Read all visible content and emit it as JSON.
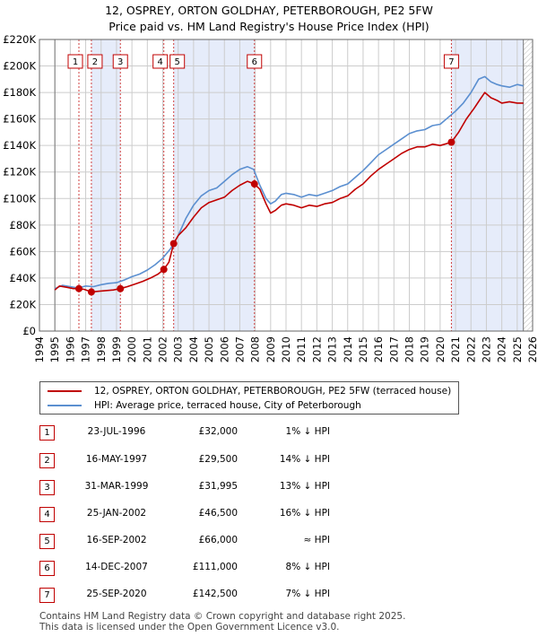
{
  "title_line1": "12, OSPREY, ORTON GOLDHAY, PETERBOROUGH, PE2 5FW",
  "title_line2": "Price paid vs. HM Land Registry's House Price Index (HPI)",
  "legend": {
    "property_label": "12, OSPREY, ORTON GOLDHAY, PETERBOROUGH, PE2 5FW (terraced house)",
    "hpi_label": "HPI: Average price, terraced house, City of Peterborough"
  },
  "colors": {
    "property": "#c00000",
    "hpi": "#5b8fd0",
    "shade": "#e6ecfa",
    "grid": "#cccccc"
  },
  "chart_data": {
    "type": "line",
    "xlim": [
      1994,
      2026
    ],
    "ylim": [
      0,
      220000
    ],
    "y_ticks": [
      0,
      20000,
      40000,
      60000,
      80000,
      100000,
      120000,
      140000,
      160000,
      180000,
      200000,
      220000
    ],
    "y_tick_labels": [
      "£0",
      "£20K",
      "£40K",
      "£60K",
      "£80K",
      "£100K",
      "£120K",
      "£140K",
      "£160K",
      "£180K",
      "£200K",
      "£220K"
    ],
    "x_ticks": [
      1994,
      1995,
      1996,
      1997,
      1998,
      1999,
      2000,
      2001,
      2002,
      2003,
      2004,
      2005,
      2006,
      2007,
      2008,
      2009,
      2010,
      2011,
      2012,
      2013,
      2014,
      2015,
      2016,
      2017,
      2018,
      2019,
      2020,
      2021,
      2022,
      2023,
      2024,
      2025,
      2026
    ],
    "data_start": 1995.0,
    "data_end": 2025.4,
    "series": [
      {
        "name": "HPI: Average price, terraced house, City of Peterborough",
        "x": [
          1995.0,
          1995.5,
          1996.0,
          1996.5,
          1997.0,
          1997.5,
          1998.0,
          1998.5,
          1999.0,
          1999.5,
          2000.0,
          2000.5,
          2001.0,
          2001.5,
          2002.0,
          2002.5,
          2003.0,
          2003.5,
          2004.0,
          2004.5,
          2005.0,
          2005.5,
          2006.0,
          2006.5,
          2007.0,
          2007.5,
          2007.9,
          2008.3,
          2008.7,
          2009.0,
          2009.3,
          2009.7,
          2010.0,
          2010.5,
          2011.0,
          2011.5,
          2012.0,
          2012.5,
          2013.0,
          2013.5,
          2014.0,
          2014.5,
          2015.0,
          2015.5,
          2016.0,
          2016.5,
          2017.0,
          2017.5,
          2018.0,
          2018.5,
          2019.0,
          2019.5,
          2020.0,
          2020.5,
          2021.0,
          2021.5,
          2022.0,
          2022.5,
          2022.9,
          2023.3,
          2023.7,
          2024.0,
          2024.5,
          2025.0,
          2025.4
        ],
        "values": [
          32000,
          34500,
          33500,
          32500,
          34000,
          33500,
          35000,
          36000,
          36500,
          38500,
          41000,
          43000,
          46000,
          50000,
          55000,
          62000,
          72000,
          85000,
          95000,
          102000,
          106000,
          108000,
          113000,
          118000,
          122000,
          124000,
          122000,
          110000,
          100000,
          96000,
          98000,
          103000,
          104000,
          103000,
          101000,
          103000,
          102000,
          104000,
          106000,
          109000,
          111000,
          116000,
          121000,
          127000,
          133000,
          137000,
          141000,
          145000,
          149000,
          151000,
          152000,
          155000,
          156000,
          161000,
          166000,
          172000,
          180000,
          190000,
          192000,
          188000,
          186000,
          185000,
          184000,
          186000,
          185000
        ]
      },
      {
        "name": "12, OSPREY, ORTON GOLDHAY, PETERBOROUGH, PE2 5FW (terraced house)",
        "x": [
          1995.0,
          1995.3,
          1995.8,
          1996.2,
          1996.56,
          1996.9,
          1997.37,
          1997.8,
          1998.3,
          1998.8,
          1999.25,
          1999.7,
          2000.2,
          2000.7,
          2001.2,
          2001.7,
          2002.07,
          2002.4,
          2002.71,
          2003.0,
          2003.5,
          2004.0,
          2004.5,
          2005.0,
          2005.5,
          2006.0,
          2006.5,
          2007.0,
          2007.5,
          2007.95,
          2008.3,
          2008.7,
          2009.0,
          2009.3,
          2009.7,
          2010.0,
          2010.5,
          2011.0,
          2011.5,
          2012.0,
          2012.5,
          2013.0,
          2013.5,
          2014.0,
          2014.5,
          2015.0,
          2015.5,
          2016.0,
          2016.5,
          2017.0,
          2017.5,
          2018.0,
          2018.5,
          2019.0,
          2019.5,
          2020.0,
          2020.73,
          2021.2,
          2021.7,
          2022.2,
          2022.6,
          2022.9,
          2023.3,
          2023.7,
          2024.0,
          2024.5,
          2025.0,
          2025.4
        ],
        "values": [
          31000,
          34000,
          33000,
          32000,
          32000,
          31500,
          29500,
          30000,
          30500,
          31000,
          31995,
          33500,
          35500,
          37500,
          40000,
          43000,
          46500,
          52000,
          66000,
          72000,
          78000,
          86000,
          93000,
          97000,
          99000,
          101000,
          106000,
          110000,
          113000,
          111000,
          107000,
          96000,
          89000,
          91000,
          95000,
          96000,
          95000,
          93000,
          95000,
          94000,
          96000,
          97000,
          100000,
          102000,
          107000,
          111000,
          117000,
          122000,
          126000,
          130000,
          134000,
          137000,
          139000,
          139000,
          141000,
          140000,
          142500,
          150000,
          160000,
          168000,
          175000,
          180000,
          176000,
          174000,
          172000,
          173000,
          172000,
          172000
        ]
      }
    ],
    "sales": [
      {
        "label": "1",
        "x": 1996.56,
        "price": 32000
      },
      {
        "label": "2",
        "x": 1997.37,
        "price": 29500
      },
      {
        "label": "3",
        "x": 1999.25,
        "price": 31995
      },
      {
        "label": "4",
        "x": 2002.07,
        "price": 46500
      },
      {
        "label": "5",
        "x": 2002.71,
        "price": 66000
      },
      {
        "label": "6",
        "x": 2007.95,
        "price": 111000
      },
      {
        "label": "7",
        "x": 2020.73,
        "price": 142500
      }
    ]
  },
  "table": [
    {
      "num": "1",
      "date": "23-JUL-1996",
      "price": "£32,000",
      "hpi": "1% ↓ HPI"
    },
    {
      "num": "2",
      "date": "16-MAY-1997",
      "price": "£29,500",
      "hpi": "14% ↓ HPI"
    },
    {
      "num": "3",
      "date": "31-MAR-1999",
      "price": "£31,995",
      "hpi": "13% ↓ HPI"
    },
    {
      "num": "4",
      "date": "25-JAN-2002",
      "price": "£46,500",
      "hpi": "16% ↓ HPI"
    },
    {
      "num": "5",
      "date": "16-SEP-2002",
      "price": "£66,000",
      "hpi": "≈ HPI"
    },
    {
      "num": "6",
      "date": "14-DEC-2007",
      "price": "£111,000",
      "hpi": "8% ↓ HPI"
    },
    {
      "num": "7",
      "date": "25-SEP-2020",
      "price": "£142,500",
      "hpi": "7% ↓ HPI"
    }
  ],
  "footer_line1": "Contains HM Land Registry data © Crown copyright and database right 2025.",
  "footer_line2": "This data is licensed under the Open Government Licence v3.0."
}
